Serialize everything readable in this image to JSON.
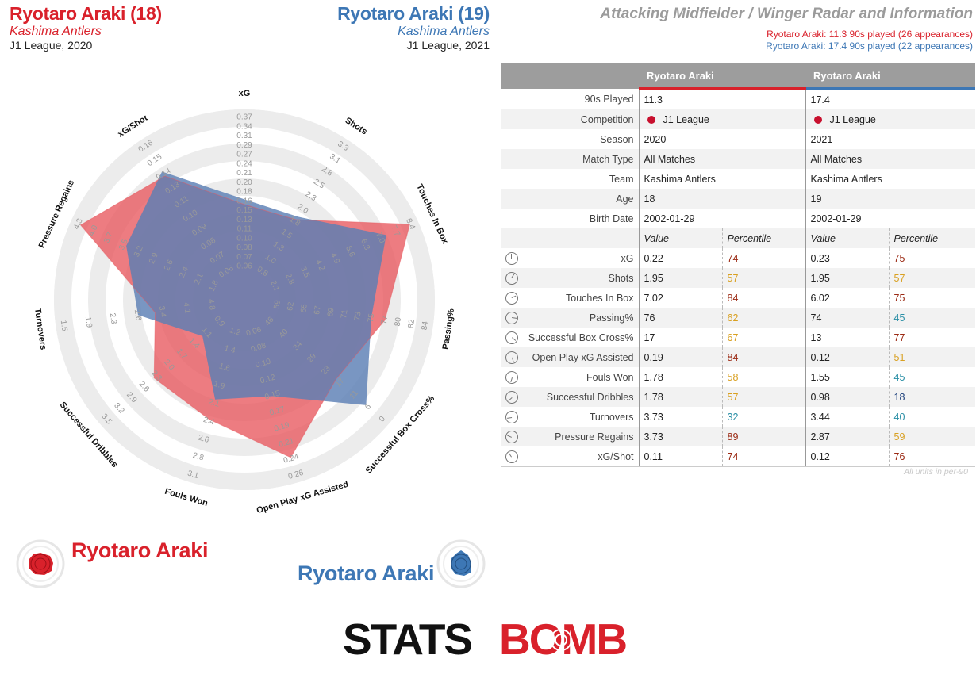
{
  "players": [
    {
      "name": "Ryotaro Araki (18)",
      "team": "Kashima Antlers",
      "competition_season": "J1 League, 2020",
      "color": "#d9212b",
      "legend_name": "Ryotaro Araki",
      "minutes_note": "Ryotaro Araki: 11.3 90s played (26 appearances)"
    },
    {
      "name": "Ryotaro Araki (19)",
      "team": "Kashima Antlers",
      "competition_season": "J1 League, 2021",
      "color": "#3d77b5",
      "legend_name": "Ryotaro Araki",
      "minutes_note": "Ryotaro Araki: 17.4 90s played (22 appearances)"
    }
  ],
  "title": "Attacking Midfielder / Winger Radar and Information",
  "table": {
    "col_player1": "Ryotaro Araki",
    "col_player2": "Ryotaro Araki",
    "info_rows": [
      {
        "label": "90s Played",
        "v1": "11.3",
        "v2": "17.4"
      },
      {
        "label": "Competition",
        "v1": "J1 League",
        "v2": "J1 League"
      },
      {
        "label": "Season",
        "v1": "2020",
        "v2": "2021"
      },
      {
        "label": "Match Type",
        "v1": "All Matches",
        "v2": "All Matches"
      },
      {
        "label": "Team",
        "v1": "Kashima Antlers",
        "v2": "Kashima Antlers"
      },
      {
        "label": "Age",
        "v1": "18",
        "v2": "19"
      },
      {
        "label": "Birth Date",
        "v1": "2002-01-29",
        "v2": "2002-01-29"
      }
    ],
    "value_header": "Value",
    "percentile_header": "Percentile",
    "metric_rows": [
      {
        "label": "xG",
        "v1": "0.22",
        "p1": "74",
        "v2": "0.23",
        "p2": "75"
      },
      {
        "label": "Shots",
        "v1": "1.95",
        "p1": "57",
        "v2": "1.95",
        "p2": "57"
      },
      {
        "label": "Touches In Box",
        "v1": "7.02",
        "p1": "84",
        "v2": "6.02",
        "p2": "75"
      },
      {
        "label": "Passing%",
        "v1": "76",
        "p1": "62",
        "v2": "74",
        "p2": "45"
      },
      {
        "label": "Successful Box Cross%",
        "v1": "17",
        "p1": "67",
        "v2": "13",
        "p2": "77"
      },
      {
        "label": "Open Play xG Assisted",
        "v1": "0.19",
        "p1": "84",
        "v2": "0.12",
        "p2": "51"
      },
      {
        "label": "Fouls Won",
        "v1": "1.78",
        "p1": "58",
        "v2": "1.55",
        "p2": "45"
      },
      {
        "label": "Successful Dribbles",
        "v1": "1.78",
        "p1": "57",
        "v2": "0.98",
        "p2": "18"
      },
      {
        "label": "Turnovers",
        "v1": "3.73",
        "p1": "32",
        "v2": "3.44",
        "p2": "40"
      },
      {
        "label": "Pressure Regains",
        "v1": "3.73",
        "p1": "89",
        "v2": "2.87",
        "p2": "59"
      },
      {
        "label": "xG/Shot",
        "v1": "0.11",
        "p1": "74",
        "v2": "0.12",
        "p2": "76"
      }
    ],
    "units_note": "All units in per-90"
  },
  "chart_data": {
    "type": "radar",
    "axes": [
      {
        "name": "xG",
        "ticks": [
          "0.06",
          "0.07",
          "0.08",
          "0.10",
          "0.11",
          "0.13",
          "0.15",
          "0.16",
          "0.18",
          "0.20",
          "0.21",
          "0.24",
          "0.27",
          "0.29",
          "0.31",
          "0.34",
          "0.37"
        ]
      },
      {
        "name": "Shots",
        "ticks": [
          "0.8",
          "1.0",
          "1.3",
          "1.5",
          "1.8",
          "2.0",
          "2.3",
          "2.5",
          "2.8",
          "3.1",
          "3.3"
        ]
      },
      {
        "name": "Touches In Box",
        "ticks": [
          "2.1",
          "2.8",
          "3.5",
          "4.2",
          "4.9",
          "5.6",
          "6.3",
          "7.0",
          "7.7",
          "8.4"
        ]
      },
      {
        "name": "Passing%",
        "ticks": [
          "59",
          "62",
          "65",
          "67",
          "69",
          "71",
          "73",
          "75",
          "77",
          "80",
          "82",
          "84"
        ]
      },
      {
        "name": "Successful Box Cross%",
        "ticks": [
          "46",
          "40",
          "34",
          "29",
          "23",
          "17",
          "11",
          "6",
          "0"
        ]
      },
      {
        "name": "Open Play xG Assisted",
        "ticks": [
          "0.06",
          "0.08",
          "0.10",
          "0.12",
          "0.15",
          "0.17",
          "0.19",
          "0.21",
          "0.24",
          "0.26"
        ]
      },
      {
        "name": "Fouls Won",
        "ticks": [
          "1.2",
          "1.4",
          "1.6",
          "1.9",
          "2.1",
          "2.4",
          "2.6",
          "2.8",
          "3.1"
        ]
      },
      {
        "name": "Successful Dribbles",
        "ticks": [
          "0.9",
          "1.1",
          "1.4",
          "1.7",
          "2.0",
          "2.3",
          "2.6",
          "2.9",
          "3.2",
          "3.5"
        ]
      },
      {
        "name": "Turnovers",
        "ticks": [
          "4.8",
          "4.1",
          "3.4",
          "2.6",
          "2.3",
          "1.9",
          "1.5"
        ]
      },
      {
        "name": "Pressure Regains",
        "ticks": [
          "1.8",
          "2.1",
          "2.4",
          "2.6",
          "2.9",
          "3.2",
          "3.5",
          "3.7",
          "4.0",
          "4.3"
        ]
      },
      {
        "name": "xG/Shot",
        "ticks": [
          "0.06",
          "0.07",
          "0.08",
          "0.09",
          "0.10",
          "0.11",
          "0.13",
          "0.14",
          "0.15",
          "0.16"
        ]
      }
    ],
    "series": [
      {
        "name": "Ryotaro Araki (18)",
        "color": "#e8575d",
        "fraction": [
          0.45,
          0.45,
          0.95,
          0.72,
          0.6,
          0.85,
          0.62,
          0.59,
          0.42,
          0.94,
          0.75
        ]
      },
      {
        "name": "Ryotaro Araki (19)",
        "color": "#5b7fb5",
        "fraction": [
          0.48,
          0.47,
          0.8,
          0.64,
          0.83,
          0.48,
          0.5,
          0.22,
          0.52,
          0.65,
          0.78
        ]
      }
    ]
  }
}
